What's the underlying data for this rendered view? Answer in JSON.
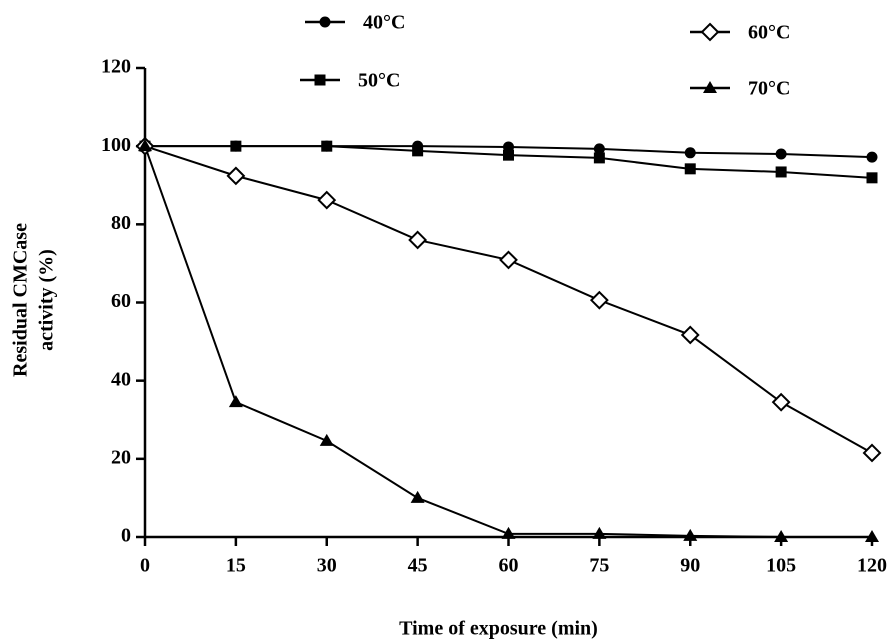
{
  "chart_data": {
    "type": "line",
    "x_label": "Time of exposure (min)",
    "y_label": [
      "Residual CMCase",
      "activity (%)"
    ],
    "x": [
      0,
      15,
      30,
      45,
      60,
      75,
      90,
      105,
      120
    ],
    "xlim": [
      0,
      120
    ],
    "xticks": [
      0,
      15,
      30,
      45,
      60,
      75,
      90,
      105,
      120
    ],
    "ylim": [
      0,
      120
    ],
    "yticks": [
      0,
      20,
      40,
      60,
      80,
      100,
      120
    ],
    "series": [
      {
        "name": "40°C",
        "color": "#000000",
        "marker": "circle",
        "values": [
          100,
          100,
          100,
          100,
          99.8,
          99.3,
          98.3,
          98.0,
          97.2
        ]
      },
      {
        "name": "50°C",
        "color": "#000000",
        "marker": "square",
        "values": [
          100,
          100,
          100,
          98.8,
          97.7,
          97.0,
          94.2,
          93.4,
          91.9
        ]
      },
      {
        "name": "60°C",
        "color": "#000000",
        "marker": "diamond-open",
        "values": [
          100,
          92.4,
          86.2,
          76.0,
          70.9,
          60.6,
          51.7,
          34.5,
          21.5
        ]
      },
      {
        "name": "70°C",
        "color": "#000000",
        "marker": "triangle",
        "values": [
          100,
          34.5,
          24.6,
          10.0,
          0.8,
          0.8,
          0.3,
          0,
          0
        ]
      }
    ]
  }
}
